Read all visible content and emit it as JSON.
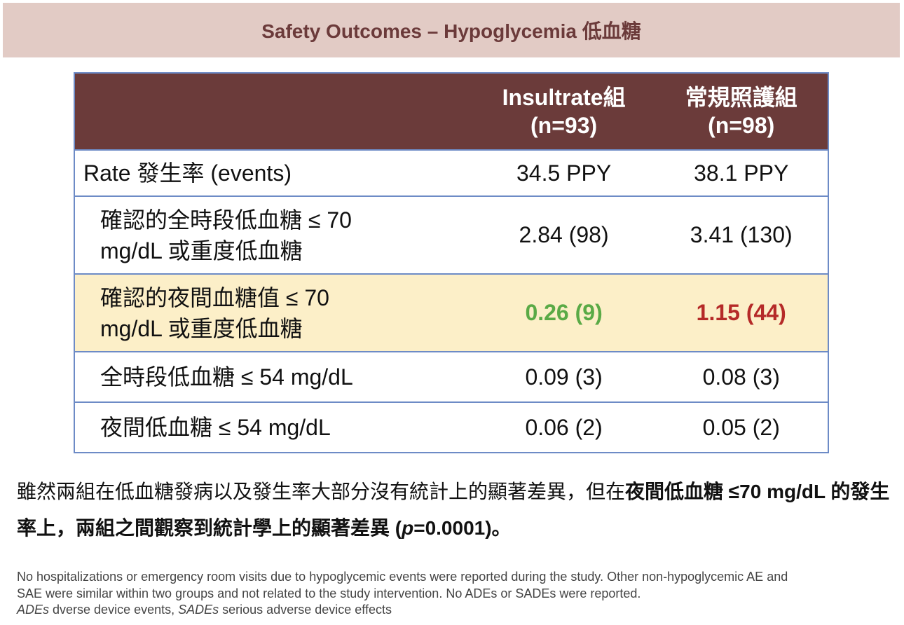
{
  "title": "Safety Outcomes – Hypoglycemia 低血糖",
  "table": {
    "header": {
      "col_a_line1": "Insultrate組",
      "col_a_line2": "(n=93)",
      "col_b_line1": "常規照護組",
      "col_b_line2": "(n=98)"
    },
    "rows": [
      {
        "label_line1": "Rate 發生率 (events)",
        "label_line2": "",
        "col_a": "34.5 PPY",
        "col_b": "38.1 PPY"
      },
      {
        "label_line1": "確認的全時段低血糖 ≤ 70",
        "label_line2": "mg/dL 或重度低血糖",
        "col_a": "2.84 (98)",
        "col_b": "3.41 (130)"
      },
      {
        "label_line1": "確認的夜間血糖值 ≤ 70",
        "label_line2": "mg/dL 或重度低血糖",
        "col_a": "0.26 (9)",
        "col_b": "1.15 (44)"
      },
      {
        "label_line1": "全時段低血糖 ≤ 54 mg/dL",
        "label_line2": "",
        "col_a": "0.09 (3)",
        "col_b": "0.08 (3)"
      },
      {
        "label_line1": "夜間低血糖 ≤ 54 mg/dL",
        "label_line2": "",
        "col_a": "0.06 (2)",
        "col_b": "0.05 (2)"
      }
    ]
  },
  "conclusion": {
    "part1": "雖然兩組在低血糖發病以及發生率大部分沒有統計上的顯著差異，但在",
    "part2": "夜間低血糖 ≤70 mg/dL 的發生率上，兩組之間觀察到統計學上的顯著差異 (",
    "p_symbol": "p",
    "part3": "=0.0001)。"
  },
  "footnote": {
    "line1": "No hospitalizations or emergency room visits due to hypoglycemic events were reported during the study. Other non-hypoglycemic AE and",
    "line2": "SAE were similar within two groups and not related to the study intervention. No ADEs or SADEs were reported.",
    "ades_abbr": "ADEs",
    "ades_def": " dverse device events, ",
    "sades_abbr": "SADEs",
    "sades_def": " serious adverse device effects"
  },
  "colors": {
    "title_bg": "#e2cbc5",
    "title_text": "#6b3a3a",
    "header_bg": "#6b3b3a",
    "table_border": "#6d8bc6",
    "highlight_row": "#fcefc8",
    "favorable_value": "#5aaa46",
    "unfavorable_value": "#b52a28"
  }
}
